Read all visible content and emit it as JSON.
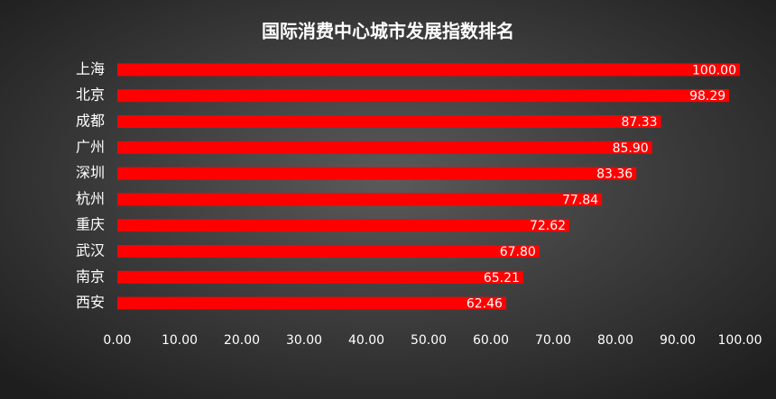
{
  "chart_data": {
    "type": "barh",
    "title": "国际消费中心城市发展指数排名",
    "categories": [
      "上海",
      "北京",
      "成都",
      "广州",
      "深圳",
      "杭州",
      "重庆",
      "武汉",
      "南京",
      "西安"
    ],
    "values": [
      100,
      98.29,
      87.33,
      85.9,
      83.36,
      77.84,
      72.62,
      67.8,
      65.21,
      62.46
    ],
    "value_labels": [
      "100.00",
      "98.29",
      "87.33",
      "85.90",
      "83.36",
      "77.84",
      "72.62",
      "67.80",
      "65.21",
      "62.46"
    ],
    "color": "#ff0000",
    "xlim": [
      0,
      100
    ],
    "xticks": [
      {
        "value": 0,
        "label": "0.00"
      },
      {
        "value": 10,
        "label": "10.00"
      },
      {
        "value": 20,
        "label": "20.00"
      },
      {
        "value": 30,
        "label": "30.00"
      },
      {
        "value": 40,
        "label": "40.00"
      },
      {
        "value": 50,
        "label": "50.00"
      },
      {
        "value": 60,
        "label": "60.00"
      },
      {
        "value": 70,
        "label": "70.00"
      },
      {
        "value": 80,
        "label": "80.00"
      },
      {
        "value": 90,
        "label": "90.00"
      },
      {
        "value": 100,
        "label": "100.00"
      }
    ],
    "grid": false
  }
}
